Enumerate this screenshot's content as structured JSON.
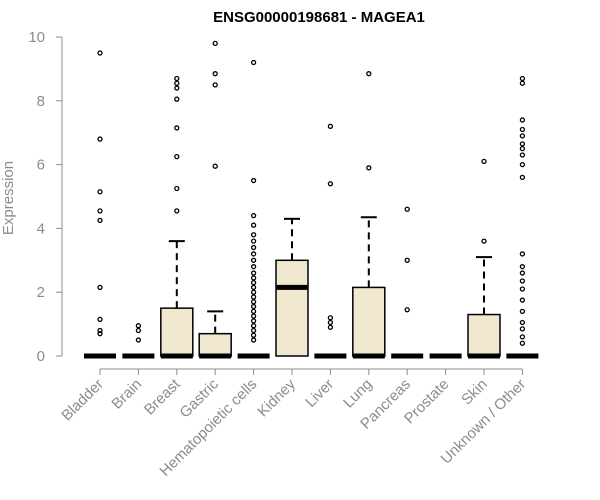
{
  "chart_data": {
    "type": "boxplot",
    "title": "ENSG00000198681 - MAGEA1",
    "ylabel": "Expression",
    "xlabel": "",
    "ylim": [
      0,
      10
    ],
    "yticks": [
      0,
      2,
      4,
      6,
      8,
      10
    ],
    "grid": false,
    "box_fill": "#efe8cf",
    "categories": [
      "Bladder",
      "Brain",
      "Breast",
      "Gastric",
      "Hematopoietic cells",
      "Kidney",
      "Liver",
      "Lung",
      "Pancreas",
      "Prostate",
      "Skin",
      "Unknown / Other"
    ],
    "boxes": [
      {
        "q1": 0,
        "median": 0,
        "q3": 0,
        "whisker_low": 0,
        "whisker_high": 0,
        "outliers": [
          9.5,
          6.8,
          5.15,
          4.55,
          4.25,
          2.15,
          1.15,
          0.8,
          0.7
        ]
      },
      {
        "q1": 0,
        "median": 0,
        "q3": 0,
        "whisker_low": 0,
        "whisker_high": 0,
        "outliers": [
          0.95,
          0.8,
          0.5
        ]
      },
      {
        "q1": 0,
        "median": 0,
        "q3": 1.5,
        "whisker_low": 0,
        "whisker_high": 3.6,
        "outliers": [
          8.7,
          8.55,
          8.4,
          8.05,
          7.15,
          6.25,
          5.25,
          4.55
        ]
      },
      {
        "q1": 0,
        "median": 0,
        "q3": 0.7,
        "whisker_low": 0,
        "whisker_high": 1.4,
        "outliers": [
          9.8,
          8.85,
          8.5,
          5.95
        ]
      },
      {
        "q1": 0,
        "median": 0,
        "q3": 0,
        "whisker_low": 0,
        "whisker_high": 0,
        "outliers": [
          9.2,
          5.5,
          4.4,
          4.1,
          3.8,
          3.6,
          3.4,
          3.2,
          3.0,
          2.8,
          2.6,
          2.45,
          2.3,
          2.15,
          2.0,
          1.85,
          1.7,
          1.55,
          1.4,
          1.25,
          1.1,
          0.95,
          0.8,
          0.65,
          0.5
        ]
      },
      {
        "q1": 0,
        "median": 2.15,
        "q3": 3.0,
        "whisker_low": 0,
        "whisker_high": 4.3,
        "outliers": []
      },
      {
        "q1": 0,
        "median": 0,
        "q3": 0,
        "whisker_low": 0,
        "whisker_high": 0,
        "outliers": [
          7.2,
          5.4,
          1.2,
          1.05,
          0.9
        ]
      },
      {
        "q1": 0,
        "median": 0,
        "q3": 2.15,
        "whisker_low": 0,
        "whisker_high": 4.35,
        "outliers": [
          8.85,
          5.9
        ]
      },
      {
        "q1": 0,
        "median": 0,
        "q3": 0,
        "whisker_low": 0,
        "whisker_high": 0,
        "outliers": [
          4.6,
          3.0,
          1.45
        ]
      },
      {
        "q1": 0,
        "median": 0,
        "q3": 0,
        "whisker_low": 0,
        "whisker_high": 0,
        "outliers": []
      },
      {
        "q1": 0,
        "median": 0,
        "q3": 1.3,
        "whisker_low": 0,
        "whisker_high": 3.1,
        "outliers": [
          6.1,
          3.6
        ]
      },
      {
        "q1": 0,
        "median": 0,
        "q3": 0,
        "whisker_low": 0,
        "whisker_high": 0,
        "outliers": [
          8.7,
          8.55,
          7.4,
          7.1,
          6.9,
          6.65,
          6.5,
          6.3,
          6.0,
          5.6,
          3.2,
          2.8,
          2.6,
          2.35,
          2.1,
          1.75,
          1.4,
          1.05,
          0.85,
          0.6,
          0.4
        ]
      }
    ]
  }
}
